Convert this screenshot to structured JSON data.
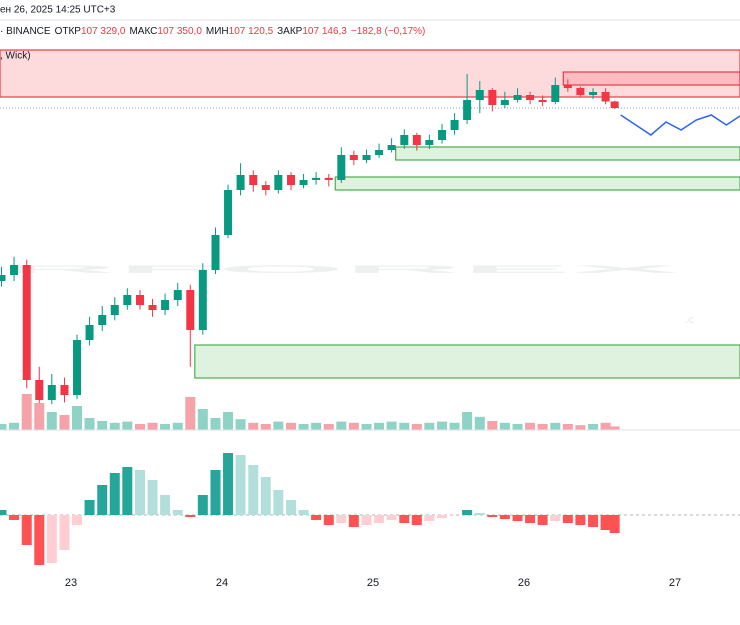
{
  "header": {
    "date": "ен 26, 2025 14:25 UTC+3",
    "exchange": "· BINANCE",
    "open_label": "ОТКР",
    "open": "107 329,0",
    "high_label": "МАКС",
    "high": "107 350,0",
    "low_label": "МИН",
    "low": "107 120,5",
    "close_label": "ЗАКР",
    "close": "107 146,3",
    "change": "−182,8 (−0,17%)",
    "indicator": ", Wick)"
  },
  "chart_data": {
    "type": "candlestick",
    "watermark": "RFOREX",
    "watermark_tail": ".c",
    "xlim": [
      22.53,
      27.43
    ],
    "xticks": [
      23,
      24,
      25,
      26,
      27
    ],
    "ylim": [
      98130,
      109050
    ],
    "up_color": "#089981",
    "down_color": "#f23645",
    "x": [
      22.54,
      22.623,
      22.707,
      22.79,
      22.873,
      22.957,
      23.04,
      23.123,
      23.207,
      23.29,
      23.373,
      23.457,
      23.54,
      23.623,
      23.707,
      23.79,
      23.873,
      23.957,
      24.04,
      24.123,
      24.207,
      24.29,
      24.373,
      24.457,
      24.54,
      24.623,
      24.707,
      24.79,
      24.873,
      24.957,
      25.04,
      25.123,
      25.207,
      25.29,
      25.373,
      25.457,
      25.54,
      25.623,
      25.707,
      25.79,
      25.873,
      25.957,
      26.04,
      26.123,
      26.207,
      26.29,
      26.373,
      26.457,
      26.54,
      26.6
    ],
    "open": [
      102300,
      102470,
      102750,
      99530,
      98970,
      99390,
      99110,
      100650,
      101070,
      101350,
      101630,
      101910,
      101630,
      101490,
      101770,
      102050,
      100930,
      102610,
      103590,
      104850,
      105270,
      104990,
      104850,
      105270,
      104990,
      105130,
      105190,
      105130,
      105830,
      105690,
      105830,
      105970,
      106110,
      106390,
      106110,
      106250,
      106530,
      106810,
      107370,
      107650,
      107230,
      107370,
      107510,
      107370,
      107314,
      107790,
      107706,
      107510,
      107594,
      107329
    ],
    "high": [
      102700,
      102980,
      102900,
      99900,
      99700,
      99600,
      100800,
      101300,
      101600,
      101850,
      102100,
      102050,
      101800,
      101950,
      102250,
      102200,
      102800,
      103800,
      105000,
      105600,
      105400,
      105100,
      105400,
      105350,
      105300,
      105350,
      105300,
      106050,
      105950,
      105980,
      106150,
      106300,
      106550,
      106450,
      106400,
      106700,
      107000,
      108100,
      107900,
      107700,
      107600,
      107700,
      107600,
      107500,
      108000,
      107950,
      107750,
      107700,
      107700,
      107350
    ],
    "low": [
      102150,
      102300,
      99300,
      98410,
      98850,
      98900,
      99000,
      100500,
      100900,
      101200,
      101500,
      101500,
      101300,
      101350,
      101600,
      99900,
      100800,
      102500,
      103500,
      104700,
      104800,
      104700,
      104750,
      104850,
      104900,
      105000,
      104950,
      105050,
      105550,
      105600,
      105750,
      105900,
      106000,
      105950,
      106000,
      106150,
      106400,
      106700,
      107000,
      107050,
      107150,
      107300,
      107250,
      107200,
      107250,
      107600,
      107450,
      107400,
      107250,
      107120.5
    ],
    "close": [
      102470,
      102750,
      99530,
      98970,
      99390,
      99110,
      100650,
      101070,
      101350,
      101630,
      101910,
      101630,
      101490,
      101770,
      102050,
      100930,
      102610,
      103590,
      104850,
      105270,
      104990,
      104850,
      105270,
      104990,
      105130,
      105190,
      105130,
      105830,
      105690,
      105830,
      105970,
      106110,
      106390,
      106110,
      106250,
      106530,
      106810,
      107370,
      107650,
      107230,
      107370,
      107510,
      107370,
      107314,
      107790,
      107706,
      107510,
      107594,
      107329,
      107146.3
    ],
    "zones": [
      {
        "low": 107454,
        "high": 108770,
        "start": 22.53,
        "color": "#f23645"
      },
      {
        "low": 107790,
        "high": 108154,
        "start": 26.26,
        "color": "#f23645"
      },
      {
        "low": 105690,
        "high": 106054,
        "start": 25.15,
        "color": "#4caf50"
      },
      {
        "low": 104850,
        "high": 105214,
        "start": 24.75,
        "color": "#4caf50"
      },
      {
        "low": 99586,
        "high": 100510,
        "start": 23.82,
        "color": "#4caf50"
      }
    ],
    "forecast": {
      "color": "#2962ff",
      "x": [
        26.64,
        26.74,
        26.84,
        26.94,
        27.04,
        27.14,
        27.24,
        27.34,
        27.44
      ],
      "values": [
        106950,
        106670,
        106390,
        106754,
        106530,
        106810,
        106950,
        106670,
        106950
      ]
    },
    "volume": {
      "ylim": [
        0,
        100
      ],
      "up_color": "#8fd3c7",
      "down_color": "#f5a3a8",
      "values": [
        10,
        12,
        60,
        45,
        30,
        25,
        40,
        20,
        15,
        12,
        14,
        10,
        12,
        10,
        12,
        55,
        35,
        20,
        30,
        18,
        12,
        10,
        14,
        12,
        10,
        12,
        10,
        14,
        12,
        10,
        12,
        14,
        12,
        10,
        12,
        14,
        12,
        30,
        22,
        15,
        12,
        10,
        12,
        10,
        12,
        10,
        8,
        10,
        12,
        6
      ]
    },
    "histogram": {
      "ylim": [
        -75,
        75
      ],
      "colors": [
        "#26a69a",
        "#b2dfdb",
        "#ff5252",
        "#ffcdd2"
      ],
      "values": [
        5,
        -5,
        -30,
        -50,
        -48,
        -35,
        -10,
        15,
        30,
        42,
        48,
        45,
        35,
        20,
        5,
        -2,
        20,
        45,
        62,
        60,
        50,
        38,
        25,
        15,
        5,
        -5,
        -10,
        -8,
        -12,
        -10,
        -8,
        -5,
        -8,
        -10,
        -6,
        -3,
        0,
        5,
        2,
        -2,
        -4,
        -6,
        -8,
        -10,
        -6,
        -8,
        -10,
        -12,
        -15,
        -18
      ]
    }
  }
}
